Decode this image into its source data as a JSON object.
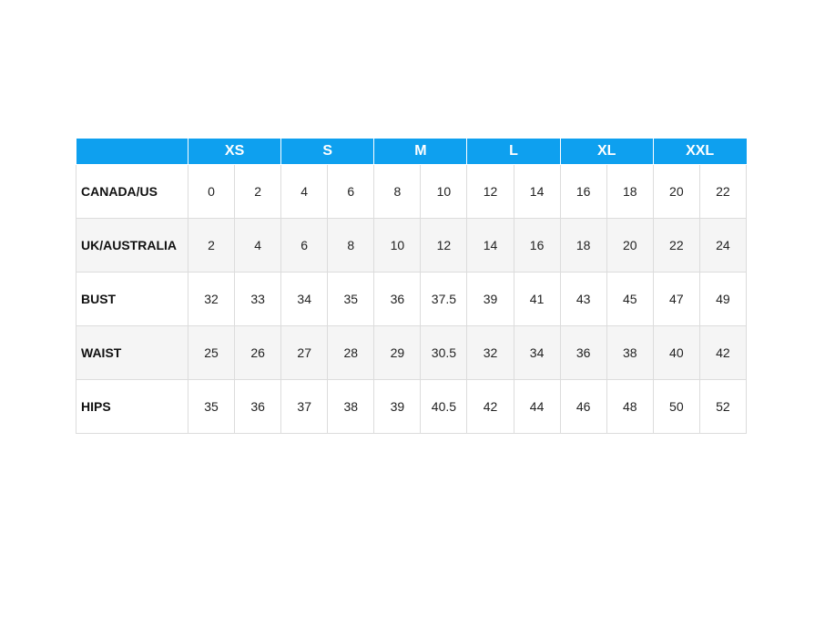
{
  "table": {
    "sizes": [
      "XS",
      "S",
      "M",
      "L",
      "XL",
      "XXL"
    ],
    "rows": [
      {
        "label": "CANADA/US",
        "values": [
          0,
          2,
          4,
          6,
          8,
          10,
          12,
          14,
          16,
          18,
          20,
          22
        ]
      },
      {
        "label": "UK/AUSTRALIA",
        "values": [
          2,
          4,
          6,
          8,
          10,
          12,
          14,
          16,
          18,
          20,
          22,
          24
        ]
      },
      {
        "label": "BUST",
        "values": [
          32,
          33,
          34,
          35,
          36,
          37.5,
          39,
          41,
          43,
          45,
          47,
          49
        ]
      },
      {
        "label": "WAIST",
        "values": [
          25,
          26,
          27,
          28,
          29,
          30.5,
          32,
          34,
          36,
          38,
          40,
          42
        ]
      },
      {
        "label": "HIPS",
        "values": [
          35,
          36,
          37,
          38,
          39,
          40.5,
          42,
          44,
          46,
          48,
          50,
          52
        ]
      }
    ]
  }
}
